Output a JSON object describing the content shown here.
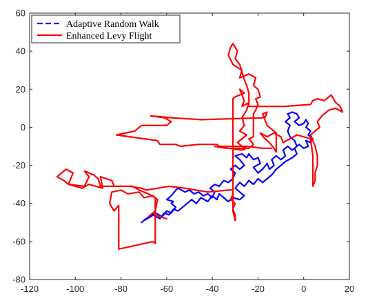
{
  "chart_data": {
    "type": "line",
    "title": "",
    "xlabel": "",
    "ylabel": "",
    "xlim": [
      -120,
      20
    ],
    "ylim": [
      -80,
      60
    ],
    "xticks": [
      -120,
      -100,
      -80,
      -60,
      -40,
      -20,
      0,
      20
    ],
    "yticks": [
      -80,
      -60,
      -40,
      -20,
      0,
      20,
      40,
      60
    ],
    "grid": false,
    "legend_position": "top-left",
    "series": [
      {
        "name": "Adaptive Random Walk",
        "color": "#0000ff",
        "style": "dashed",
        "points": [
          [
            -70,
            -49
          ],
          [
            -67,
            -47
          ],
          [
            -65,
            -45
          ],
          [
            -62,
            -47
          ],
          [
            -60,
            -44
          ],
          [
            -58,
            -45
          ],
          [
            -56,
            -42
          ],
          [
            -58,
            -40
          ],
          [
            -57,
            -39
          ],
          [
            -60,
            -38
          ],
          [
            -58,
            -36
          ],
          [
            -56,
            -33
          ],
          [
            -55,
            -32
          ],
          [
            -52,
            -34
          ],
          [
            -50,
            -33
          ],
          [
            -48,
            -35
          ],
          [
            -46,
            -34
          ],
          [
            -44,
            -36
          ],
          [
            -42,
            -35
          ],
          [
            -40,
            -37
          ],
          [
            -39,
            -34
          ],
          [
            -41,
            -32
          ],
          [
            -39,
            -30
          ],
          [
            -37,
            -31
          ],
          [
            -35,
            -28
          ],
          [
            -33,
            -29
          ],
          [
            -31,
            -27
          ],
          [
            -30,
            -24
          ],
          [
            -32,
            -22
          ],
          [
            -30,
            -20
          ],
          [
            -28,
            -22
          ],
          [
            -26,
            -20
          ],
          [
            -28,
            -17
          ],
          [
            -30,
            -15
          ],
          [
            -27,
            -14
          ],
          [
            -25,
            -16
          ],
          [
            -24,
            -14
          ],
          [
            -22,
            -17
          ],
          [
            -20,
            -16
          ],
          [
            -19,
            -19
          ],
          [
            -22,
            -21
          ],
          [
            -20,
            -24
          ],
          [
            -18,
            -22
          ],
          [
            -16,
            -19
          ],
          [
            -15,
            -22
          ],
          [
            -13,
            -20
          ],
          [
            -14,
            -17
          ],
          [
            -12,
            -15
          ],
          [
            -10,
            -17
          ],
          [
            -8,
            -15
          ],
          [
            -9,
            -12
          ],
          [
            -7,
            -10
          ],
          [
            -5,
            -12
          ],
          [
            -3,
            -10
          ],
          [
            -4,
            -7
          ],
          [
            -6,
            -5
          ],
          [
            -7,
            -2
          ],
          [
            -6,
            1
          ],
          [
            -8,
            3
          ],
          [
            -6,
            5
          ],
          [
            -7,
            7
          ],
          [
            -5,
            8
          ],
          [
            -3,
            7
          ],
          [
            -2,
            5
          ],
          [
            -4,
            3
          ],
          [
            -2,
            1
          ],
          [
            0,
            2
          ],
          [
            1,
            4
          ],
          [
            2,
            2
          ],
          [
            1,
            0
          ],
          [
            3,
            -2
          ],
          [
            2,
            -4
          ],
          [
            4,
            -6
          ],
          [
            3,
            -8
          ],
          [
            1,
            -7
          ],
          [
            2,
            -10
          ],
          [
            0,
            -11
          ],
          [
            -2,
            -9
          ],
          [
            -4,
            -11
          ],
          [
            -3,
            -14
          ],
          [
            -5,
            -16
          ],
          [
            -8,
            -18
          ],
          [
            -10,
            -20
          ],
          [
            -12,
            -22
          ],
          [
            -14,
            -25
          ],
          [
            -16,
            -27
          ],
          [
            -18,
            -29
          ],
          [
            -20,
            -27
          ],
          [
            -22,
            -30
          ],
          [
            -24,
            -28
          ],
          [
            -26,
            -31
          ],
          [
            -28,
            -29
          ],
          [
            -30,
            -32
          ],
          [
            -28,
            -34
          ],
          [
            -26,
            -36
          ],
          [
            -28,
            -38
          ],
          [
            -31,
            -37
          ],
          [
            -33,
            -39
          ],
          [
            -35,
            -37
          ],
          [
            -37,
            -35
          ],
          [
            -38,
            -38
          ],
          [
            -40,
            -36
          ],
          [
            -42,
            -39
          ],
          [
            -45,
            -37
          ],
          [
            -47,
            -40
          ],
          [
            -49,
            -38
          ],
          [
            -51,
            -40
          ],
          [
            -53,
            -42
          ],
          [
            -55,
            -44
          ],
          [
            -57,
            -43
          ],
          [
            -59,
            -46
          ],
          [
            -61,
            -45
          ],
          [
            -63,
            -48
          ],
          [
            -66,
            -46
          ],
          [
            -69,
            -48
          ],
          [
            -71,
            -50
          ]
        ]
      },
      {
        "name": "Enhanced Levy Flight",
        "color": "#ff0000",
        "style": "solid",
        "points": [
          [
            -60,
            -48
          ],
          [
            -63,
            -47
          ],
          [
            -66,
            -45
          ],
          [
            -68,
            -47
          ],
          [
            -65,
            -44
          ],
          [
            -64,
            -38
          ],
          [
            -66,
            -36
          ],
          [
            -70,
            -37
          ],
          [
            -72,
            -34
          ],
          [
            -77,
            -35
          ],
          [
            -80,
            -33
          ],
          [
            -84,
            -34
          ],
          [
            -85,
            -40
          ],
          [
            -83,
            -44
          ],
          [
            -81,
            -41
          ],
          [
            -81,
            -64
          ],
          [
            -66,
            -60
          ],
          [
            -65,
            -61
          ],
          [
            -65,
            -37
          ],
          [
            -68,
            -35
          ],
          [
            -72,
            -33
          ],
          [
            -75,
            -31
          ],
          [
            -83,
            -31
          ],
          [
            -84,
            -28
          ],
          [
            -89,
            -26
          ],
          [
            -88,
            -32
          ],
          [
            -94,
            -30
          ],
          [
            -97,
            -32
          ],
          [
            -103,
            -30
          ],
          [
            -105,
            -28
          ],
          [
            -108,
            -26
          ],
          [
            -104,
            -22
          ],
          [
            -101,
            -24
          ],
          [
            -103,
            -30
          ],
          [
            -96,
            -31
          ],
          [
            -94,
            -26
          ],
          [
            -96,
            -23
          ],
          [
            -92,
            -25
          ],
          [
            -90,
            -27
          ],
          [
            -89,
            -31
          ],
          [
            -76,
            -31
          ],
          [
            -71,
            -32
          ],
          [
            -69,
            -33
          ],
          [
            -59,
            -31
          ],
          [
            -52,
            -32
          ],
          [
            -42,
            -34
          ],
          [
            -33,
            -33
          ],
          [
            -31,
            -33
          ],
          [
            -31,
            -32
          ],
          [
            -31,
            -35
          ],
          [
            -32,
            -38
          ],
          [
            -30,
            -40
          ],
          [
            -31,
            -43
          ],
          [
            -30,
            -46
          ],
          [
            -30,
            -49
          ],
          [
            -31,
            -44
          ],
          [
            -31,
            -10
          ],
          [
            -31,
            -4
          ],
          [
            -31,
            12
          ],
          [
            -31,
            15
          ],
          [
            -30,
            16
          ],
          [
            -26,
            18
          ],
          [
            -28,
            20
          ],
          [
            -26,
            14
          ],
          [
            -27,
            11
          ],
          [
            -24,
            13
          ],
          [
            -25,
            9
          ],
          [
            -27,
            5
          ],
          [
            -26,
            1
          ],
          [
            -28,
            -2
          ],
          [
            -25,
            -4
          ],
          [
            -27,
            -6
          ],
          [
            -29,
            -8
          ],
          [
            -27,
            -10
          ],
          [
            -25,
            -11
          ],
          [
            -27,
            -12
          ],
          [
            -39,
            -10
          ],
          [
            -34,
            -11
          ],
          [
            -24,
            -11
          ],
          [
            -22,
            -9
          ],
          [
            -24,
            -6
          ],
          [
            -22,
            -5
          ],
          [
            -22,
            7
          ],
          [
            -21,
            9
          ],
          [
            -20,
            12
          ],
          [
            -21,
            15
          ],
          [
            -19,
            16
          ],
          [
            -20,
            20
          ],
          [
            -22,
            22
          ],
          [
            -21,
            26
          ],
          [
            -24,
            28
          ],
          [
            -28,
            26
          ],
          [
            -27,
            30
          ],
          [
            -31,
            33
          ],
          [
            -33,
            38
          ],
          [
            -32,
            42
          ],
          [
            -31,
            44
          ],
          [
            -29,
            40
          ],
          [
            -30,
            36
          ],
          [
            -28,
            33
          ],
          [
            -27,
            29
          ],
          [
            -26,
            25
          ],
          [
            -25,
            22
          ],
          [
            -24,
            18
          ],
          [
            -24,
            14
          ],
          [
            -24,
            11
          ],
          [
            -8,
            11
          ],
          [
            3,
            12
          ],
          [
            4,
            14
          ],
          [
            6,
            15
          ],
          [
            9,
            14
          ],
          [
            12,
            17
          ],
          [
            14,
            13
          ],
          [
            16,
            11
          ],
          [
            17,
            8
          ],
          [
            14,
            10
          ],
          [
            11,
            9
          ],
          [
            8,
            6
          ],
          [
            6,
            3
          ],
          [
            7,
            0
          ],
          [
            5,
            -2
          ],
          [
            3,
            -4
          ],
          [
            4,
            -7
          ],
          [
            5,
            -10
          ],
          [
            6,
            -15
          ],
          [
            6,
            -20
          ],
          [
            5,
            -24
          ],
          [
            5,
            -28
          ],
          [
            4,
            -31
          ],
          [
            4,
            -15
          ],
          [
            3,
            -6
          ],
          [
            0,
            -5
          ],
          [
            -3,
            -4
          ],
          [
            -6,
            -6
          ],
          [
            -9,
            -8
          ],
          [
            -10,
            -5
          ],
          [
            -13,
            -3
          ],
          [
            -16,
            -5
          ],
          [
            -19,
            -3
          ],
          [
            -17,
            -6
          ],
          [
            -15,
            -8
          ],
          [
            -13,
            -11
          ],
          [
            -12,
            -13
          ],
          [
            -12,
            -3
          ],
          [
            -14,
            -1
          ],
          [
            -16,
            1
          ],
          [
            -17,
            4
          ],
          [
            -18,
            7
          ],
          [
            -16,
            8
          ],
          [
            -17,
            5
          ],
          [
            -45,
            4
          ],
          [
            -58,
            5
          ],
          [
            -67,
            6
          ],
          [
            -61,
            5
          ],
          [
            -58,
            3
          ],
          [
            -60,
            1
          ],
          [
            -71,
            1
          ],
          [
            -74,
            -2
          ],
          [
            -82,
            -4
          ],
          [
            -70,
            -6
          ],
          [
            -64,
            -7
          ],
          [
            -63,
            -9
          ],
          [
            -56,
            -9
          ],
          [
            -54,
            -10
          ],
          [
            -46,
            -9
          ],
          [
            -38,
            -9
          ],
          [
            -37,
            -10
          ],
          [
            -32,
            -10
          ],
          [
            -25,
            -10
          ],
          [
            -18,
            -11
          ],
          [
            -14,
            -11
          ]
        ]
      }
    ]
  }
}
